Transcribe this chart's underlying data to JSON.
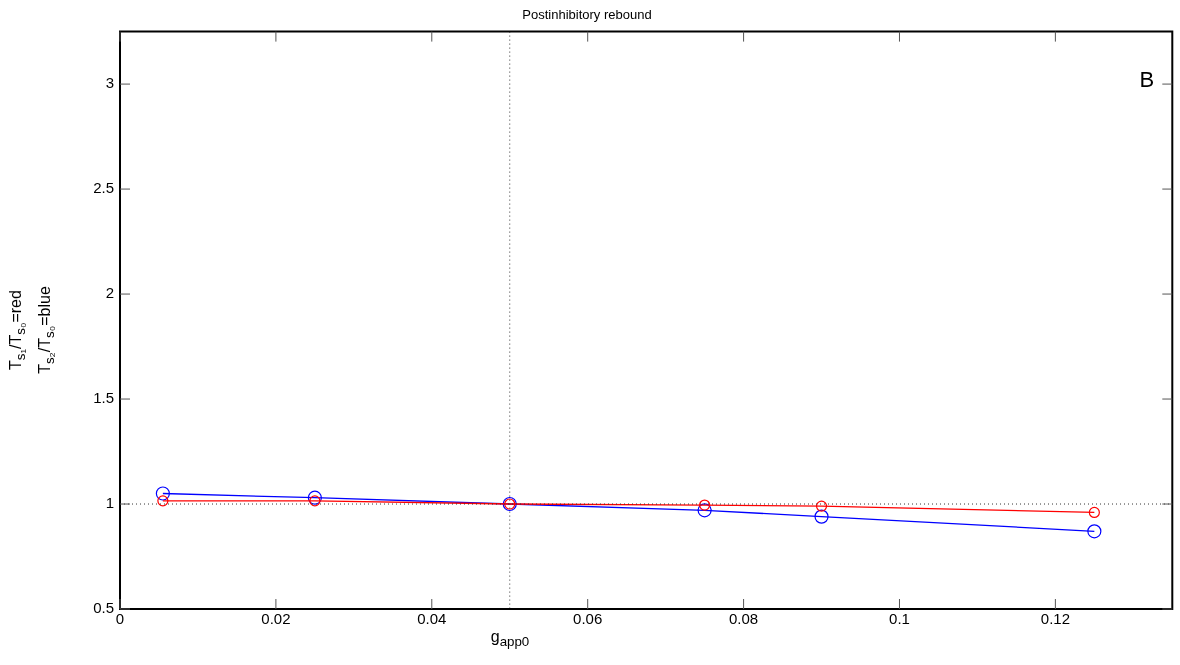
{
  "chart_data": {
    "type": "line",
    "title": "Postinhibitory rebound",
    "xlabel": "g$_{app0}$",
    "ylabel": [
      "T$_{s₁}$/T$_{s₀}$=red",
      "T$_{s₂}$/T$_{s₀}$=blue"
    ],
    "x": [
      0.0055,
      0.025,
      0.05,
      0.075,
      0.09,
      0.125
    ],
    "series": [
      {
        "color": "#0000ff",
        "values": [
          1.05,
          1.03,
          1,
          0.97,
          0.94,
          0.87
        ]
      },
      {
        "color": "#ff0000",
        "values": [
          1.015,
          1.015,
          1,
          0.995,
          0.99,
          0.96
        ]
      }
    ],
    "xlim": [
      0,
      0.135
    ],
    "xticks": [
      0,
      0.02,
      0.04,
      0.06,
      0.08,
      0.1,
      0.12
    ],
    "ylim": [
      0.5,
      3.25
    ],
    "yticks": [
      0.5,
      1,
      1.5,
      2,
      2.5,
      3
    ],
    "ref_lines": [
      {
        "axis": "x",
        "value": 0.05,
        "line_style": "dotted"
      },
      {
        "axis": "y",
        "value": 1,
        "line_style": "dotted"
      }
    ],
    "annotations": [
      "B"
    ],
    "marker": "circle",
    "grid": false,
    "legend": false
  }
}
